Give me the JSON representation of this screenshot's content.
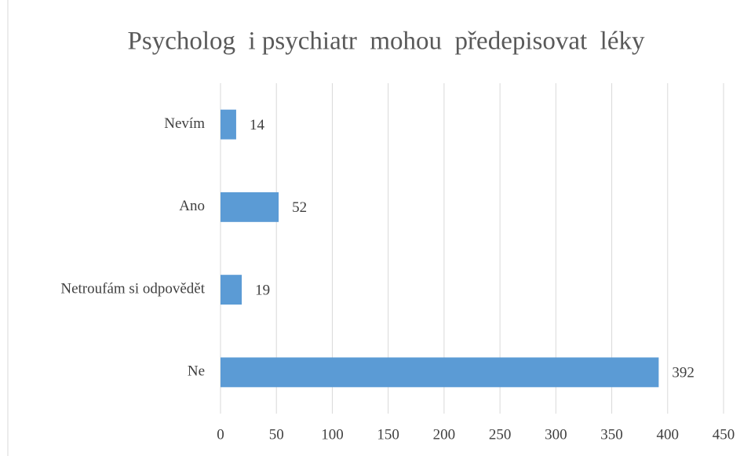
{
  "chart_data": {
    "type": "bar",
    "orientation": "horizontal",
    "title": "Psycholog  i psychiatr  mohou  předepisovat  léky",
    "categories": [
      "Nevím",
      "Ano",
      "Netroufám si odpovědět",
      "Ne"
    ],
    "values": [
      14,
      52,
      19,
      392
    ],
    "color": "#5b9bd5",
    "xlim": [
      0,
      450
    ],
    "xticks": [
      0,
      50,
      100,
      150,
      200,
      250,
      300,
      350,
      400,
      450
    ],
    "grid": true
  }
}
